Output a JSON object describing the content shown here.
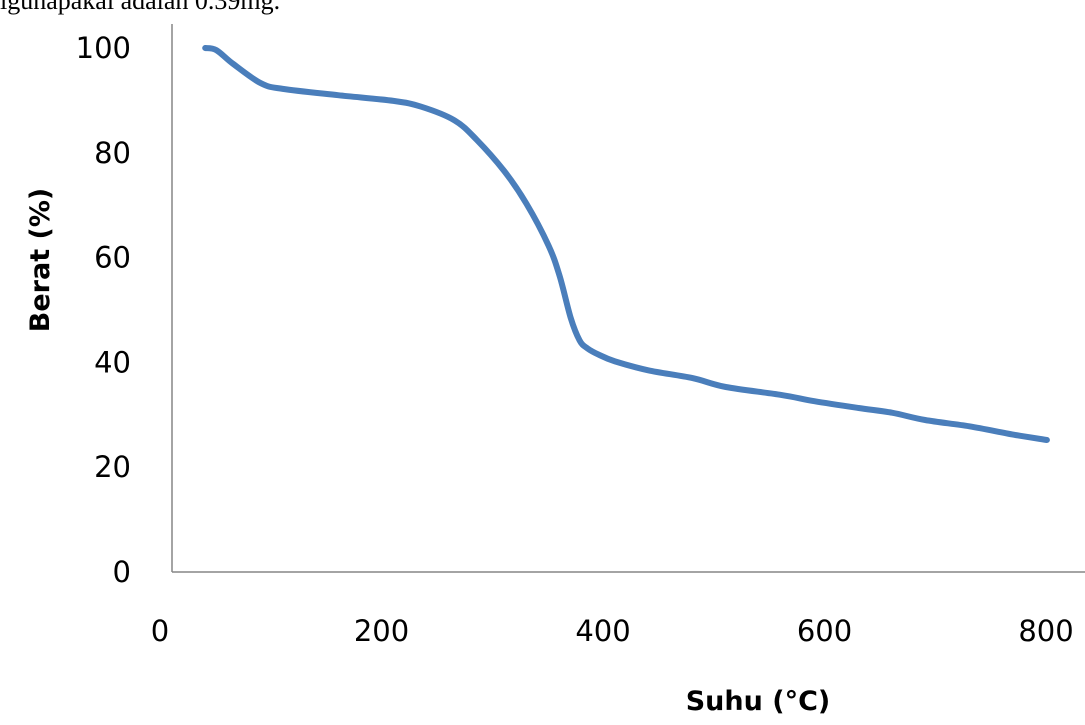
{
  "page": {
    "top_text": "igunapakai adalah 0.39mg."
  },
  "chart_data": {
    "type": "line",
    "title": "",
    "xlabel": "Suhu (°C)",
    "ylabel": "Berat (%)",
    "xlim": [
      0,
      800
    ],
    "ylim": [
      0,
      100
    ],
    "x_ticks": [
      0,
      200,
      400,
      600,
      800
    ],
    "y_ticks": [
      0,
      20,
      40,
      60,
      80,
      100
    ],
    "grid": false,
    "legend": "none",
    "line_color": "#4a7ebb",
    "series": [
      {
        "x": [
          30,
          40,
          55,
          80,
          100,
          150,
          200,
          225,
          255,
          275,
          300,
          320,
          340,
          350,
          360,
          368,
          375,
          385,
          400,
          430,
          470,
          500,
          550,
          580,
          620,
          650,
          680,
          720,
          760,
          790
        ],
        "y": [
          100,
          99.6,
          97,
          93.3,
          92.2,
          91.0,
          89.9,
          88.8,
          86.2,
          82.5,
          76.5,
          70.3,
          62.3,
          56.5,
          48.5,
          44.2,
          42.7,
          41.5,
          40.2,
          38.5,
          37.0,
          35.3,
          33.8,
          32.6,
          31.3,
          30.4,
          29.0,
          27.8,
          26.2,
          25.2
        ]
      }
    ]
  }
}
